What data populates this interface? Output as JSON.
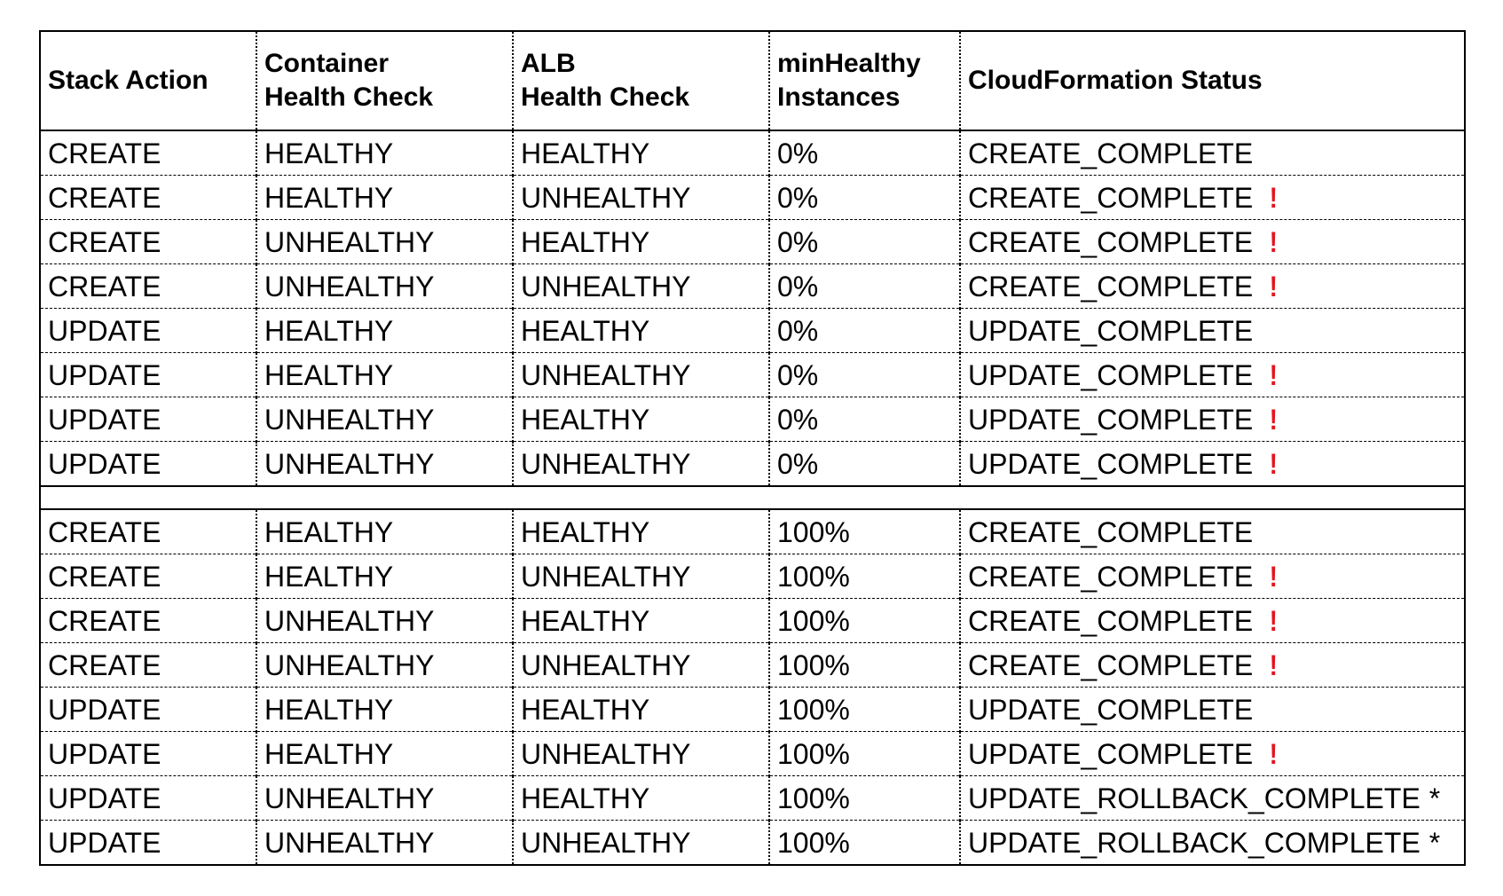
{
  "headers": [
    [
      "Stack Action"
    ],
    [
      "Container",
      "Health Check"
    ],
    [
      "ALB",
      "Health Check"
    ],
    [
      "minHealthy",
      "Instances"
    ],
    [
      "CloudFormation Status"
    ]
  ],
  "groups": [
    {
      "rows": [
        {
          "action": "CREATE",
          "container": "HEALTHY",
          "alb": "HEALTHY",
          "min": "0%",
          "status": "CREATE_COMPLETE",
          "flag": ""
        },
        {
          "action": "CREATE",
          "container": "HEALTHY",
          "alb": "UNHEALTHY",
          "min": "0%",
          "status": "CREATE_COMPLETE",
          "flag": "!"
        },
        {
          "action": "CREATE",
          "container": "UNHEALTHY",
          "alb": "HEALTHY",
          "min": "0%",
          "status": "CREATE_COMPLETE",
          "flag": "!"
        },
        {
          "action": "CREATE",
          "container": "UNHEALTHY",
          "alb": "UNHEALTHY",
          "min": "0%",
          "status": "CREATE_COMPLETE",
          "flag": "!"
        },
        {
          "action": "UPDATE",
          "container": "HEALTHY",
          "alb": "HEALTHY",
          "min": "0%",
          "status": "UPDATE_COMPLETE",
          "flag": ""
        },
        {
          "action": "UPDATE",
          "container": "HEALTHY",
          "alb": "UNHEALTHY",
          "min": "0%",
          "status": "UPDATE_COMPLETE",
          "flag": "!"
        },
        {
          "action": "UPDATE",
          "container": "UNHEALTHY",
          "alb": "HEALTHY",
          "min": "0%",
          "status": "UPDATE_COMPLETE",
          "flag": "!"
        },
        {
          "action": "UPDATE",
          "container": "UNHEALTHY",
          "alb": "UNHEALTHY",
          "min": "0%",
          "status": "UPDATE_COMPLETE",
          "flag": "!"
        }
      ]
    },
    {
      "rows": [
        {
          "action": "CREATE",
          "container": "HEALTHY",
          "alb": "HEALTHY",
          "min": "100%",
          "status": "CREATE_COMPLETE",
          "flag": ""
        },
        {
          "action": "CREATE",
          "container": "HEALTHY",
          "alb": "UNHEALTHY",
          "min": "100%",
          "status": "CREATE_COMPLETE",
          "flag": "!"
        },
        {
          "action": "CREATE",
          "container": "UNHEALTHY",
          "alb": "HEALTHY",
          "min": "100%",
          "status": "CREATE_COMPLETE",
          "flag": "!"
        },
        {
          "action": "CREATE",
          "container": "UNHEALTHY",
          "alb": "UNHEALTHY",
          "min": "100%",
          "status": "CREATE_COMPLETE",
          "flag": "!"
        },
        {
          "action": "UPDATE",
          "container": "HEALTHY",
          "alb": "HEALTHY",
          "min": "100%",
          "status": "UPDATE_COMPLETE",
          "flag": ""
        },
        {
          "action": "UPDATE",
          "container": "HEALTHY",
          "alb": "UNHEALTHY",
          "min": "100%",
          "status": "UPDATE_COMPLETE",
          "flag": "!"
        },
        {
          "action": "UPDATE",
          "container": "UNHEALTHY",
          "alb": "HEALTHY",
          "min": "100%",
          "status": "UPDATE_ROLLBACK_COMPLETE",
          "flag": "*"
        },
        {
          "action": "UPDATE",
          "container": "UNHEALTHY",
          "alb": "UNHEALTHY",
          "min": "100%",
          "status": "UPDATE_ROLLBACK_COMPLETE",
          "flag": "*"
        }
      ]
    }
  ],
  "colors": {
    "warning_mark": "#e3141e",
    "text": "#000000",
    "background": "#ffffff"
  }
}
